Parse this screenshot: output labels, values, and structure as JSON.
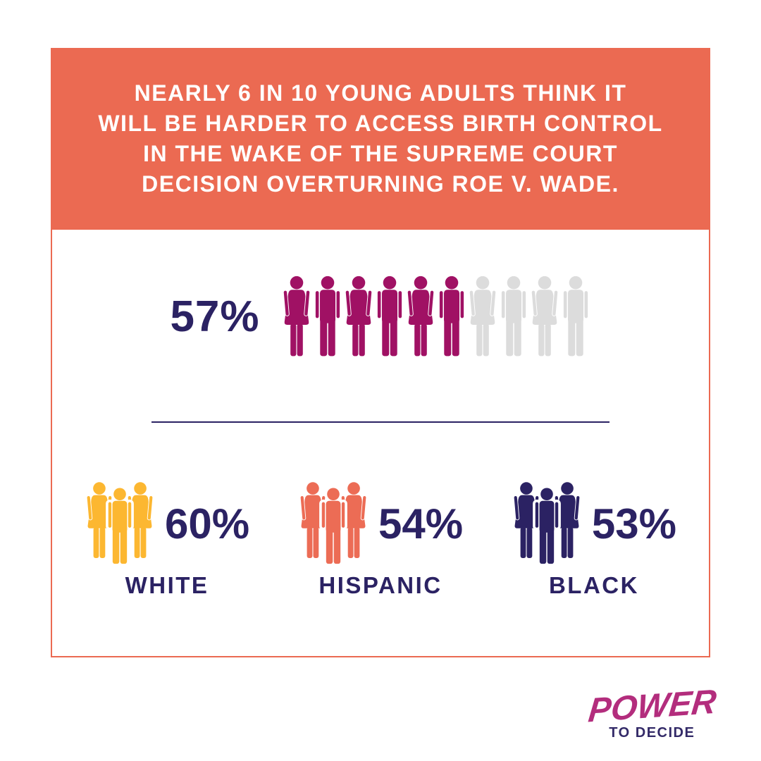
{
  "colors": {
    "banner_orange": "#EB6A52",
    "accent_magenta": "#A01164",
    "icon_gray": "#DCDCDC",
    "navy": "#2B2263",
    "group_white_yellow": "#FCB731",
    "group_hispanic_salmon": "#EC6C55",
    "group_black_navy": "#2B2263",
    "logo_magenta": "#B32D7D",
    "logo_navy": "#332A68"
  },
  "header": {
    "lines": [
      "NEARLY 6 IN 10 YOUNG ADULTS THINK IT",
      "WILL BE HARDER TO ACCESS BIRTH CONTROL",
      "IN THE WAKE OF THE SUPREME COURT",
      "DECISION OVERTURNING ROE V. WADE."
    ]
  },
  "main_stat": {
    "value": "57%",
    "icons_total": 10,
    "icons_filled": 6
  },
  "groups": [
    {
      "label": "WHITE",
      "value": "60%",
      "color_key": "group_white_yellow"
    },
    {
      "label": "HISPANIC",
      "value": "54%",
      "color_key": "group_hispanic_salmon"
    },
    {
      "label": "BLACK",
      "value": "53%",
      "color_key": "group_black_navy"
    }
  ],
  "logo": {
    "line1": "POWER",
    "line2": "TO DECIDE"
  },
  "chart_data": {
    "type": "bar",
    "style": "pictogram",
    "title": "Nearly 6 in 10 young adults think it will be harder to access birth control in the wake of the Supreme Court decision overturning Roe v. Wade.",
    "categories": [
      "All young adults",
      "White",
      "Hispanic",
      "Black"
    ],
    "values": [
      57,
      60,
      54,
      53
    ],
    "unit": "%",
    "pictogram_overall": {
      "total_figures": 10,
      "filled_figures": 6
    },
    "legend_position": "none",
    "grid": false
  }
}
